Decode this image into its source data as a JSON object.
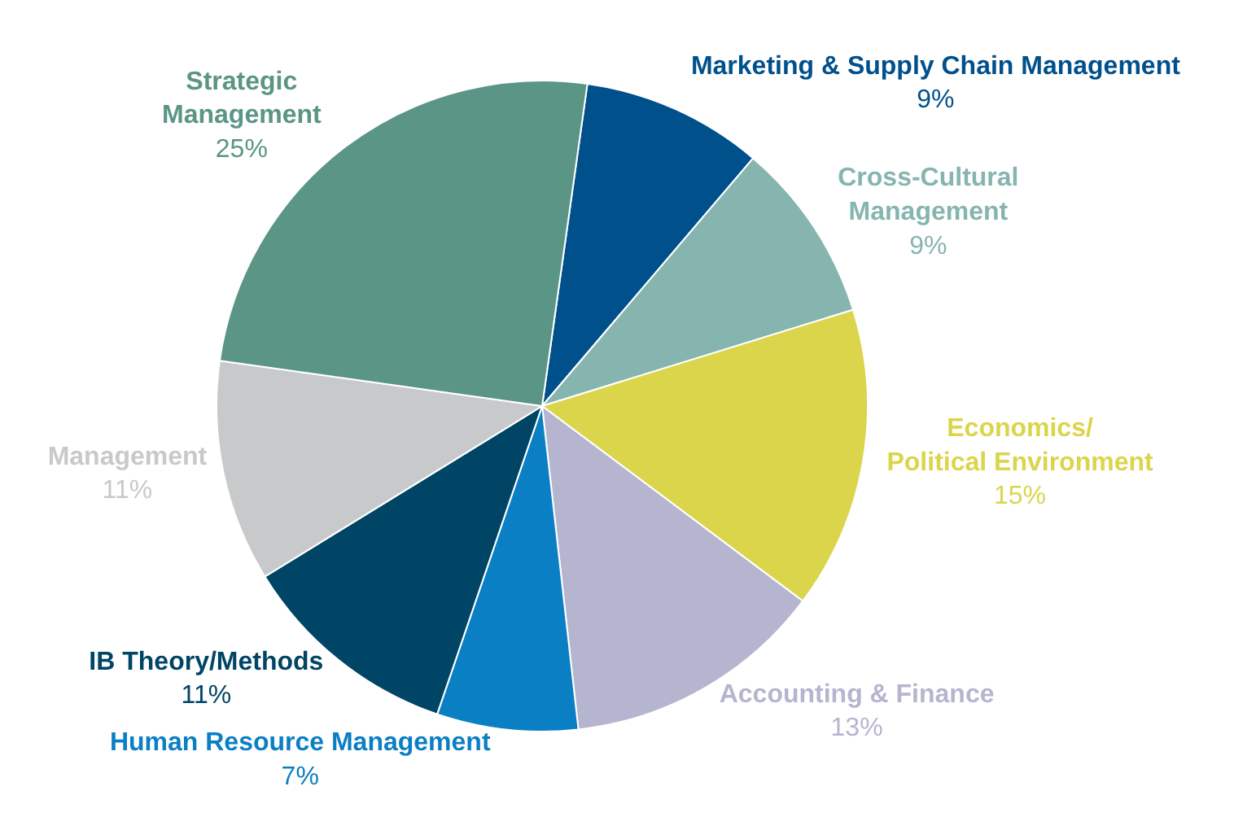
{
  "chart_data": {
    "type": "pie",
    "categories": [
      "Marketing & Supply Chain Management",
      "Cross-Cultural\nManagement",
      "Economics/\nPolitical Environment",
      "Accounting & Finance",
      "Human Resource Management",
      "IB Theory/Methods",
      "Management",
      "Strategic\nManagement"
    ],
    "values": [
      9,
      9,
      15,
      13,
      7,
      11,
      11,
      25
    ],
    "value_labels": [
      "9%",
      "9%",
      "15%",
      "13%",
      "7%",
      "11%",
      "11%",
      "25%"
    ],
    "colors": [
      "#00508c",
      "#86b5b0",
      "#dbd54b",
      "#b5b5cf",
      "#0a7fc4",
      "#004466",
      "#c8c9ca",
      "#5b9585"
    ],
    "legend": false
  }
}
